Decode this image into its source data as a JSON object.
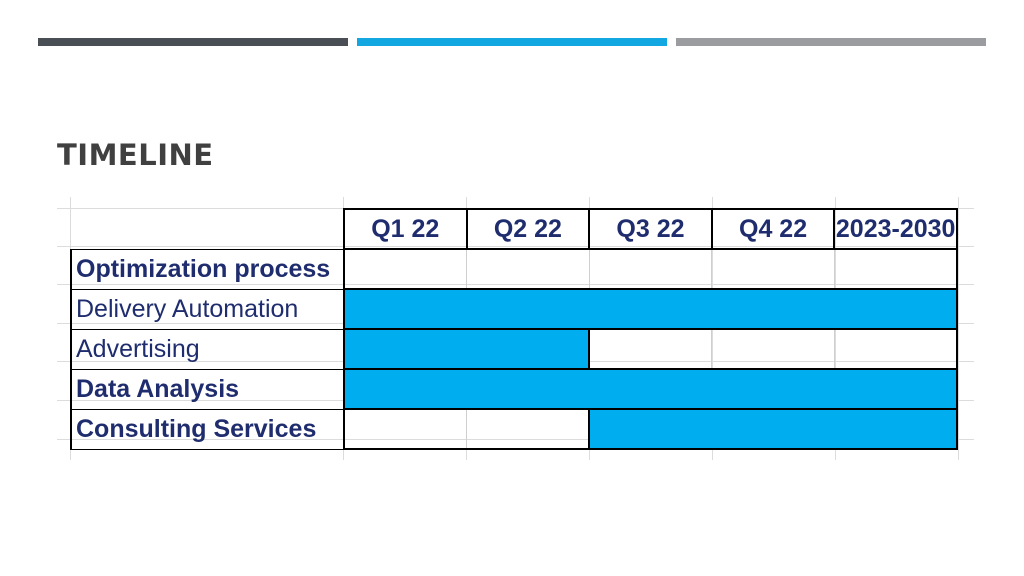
{
  "slide": {
    "title": "TIMELINE",
    "strip_colors": [
      "#4a4f55",
      "#12a7e0",
      "#9a9ca0"
    ]
  },
  "chart_data": {
    "type": "table",
    "columns": [
      "Q1 22",
      "Q2 22",
      "Q3 22",
      "Q4 22",
      "2023-2030"
    ],
    "rows": [
      {
        "label": "Optimization process",
        "bold": true,
        "filled": [
          false,
          false,
          false,
          false,
          false
        ]
      },
      {
        "label": "Delivery Automation",
        "bold": false,
        "filled": [
          true,
          true,
          true,
          true,
          true
        ]
      },
      {
        "label": "Advertising",
        "bold": false,
        "filled": [
          true,
          true,
          false,
          false,
          false
        ]
      },
      {
        "label": "Data Analysis",
        "bold": true,
        "filled": [
          true,
          true,
          true,
          true,
          true
        ]
      },
      {
        "label": "Consulting Services",
        "bold": true,
        "filled": [
          false,
          false,
          true,
          true,
          true
        ]
      }
    ],
    "fill_color": "#00adee"
  }
}
